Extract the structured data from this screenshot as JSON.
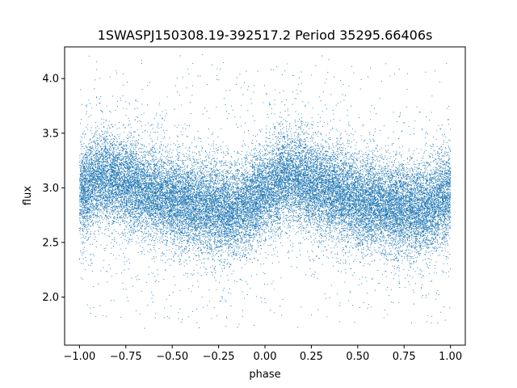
{
  "chart_data": {
    "type": "scatter",
    "title": "1SWASPJ150308.19-392517.2 Period 35295.66406s",
    "xlabel": "phase",
    "ylabel": "flux",
    "xlim": [
      -1.08,
      1.08
    ],
    "ylim": [
      1.56,
      4.29
    ],
    "x_ticks": [
      -1.0,
      -0.75,
      -0.5,
      -0.25,
      0.0,
      0.25,
      0.5,
      0.75,
      1.0
    ],
    "x_tick_labels": [
      "−1.00",
      "−0.75",
      "−0.50",
      "−0.25",
      "0.00",
      "0.25",
      "0.50",
      "0.75",
      "1.00"
    ],
    "y_ticks": [
      2.0,
      2.5,
      3.0,
      3.5,
      4.0
    ],
    "y_tick_labels": [
      "2.0",
      "2.5",
      "3.0",
      "3.5",
      "4.0"
    ],
    "grid": false,
    "legend": "none",
    "point_color": "#1f77b4",
    "series": [
      {
        "x_range": [
          -1.0,
          1.0
        ],
        "phased_profile": {
          "phase": [
            0.0,
            0.1,
            0.2,
            0.3,
            0.4,
            0.5,
            0.6,
            0.7,
            0.8,
            0.9,
            1.0
          ],
          "flux": [
            2.95,
            3.1,
            3.08,
            3.0,
            2.95,
            2.88,
            2.85,
            2.82,
            2.8,
            2.83,
            2.95
          ]
        },
        "scatter_sigma": 0.2,
        "outlier_range": [
          1.72,
          4.17
        ],
        "approx_point_count": 30000
      }
    ]
  }
}
